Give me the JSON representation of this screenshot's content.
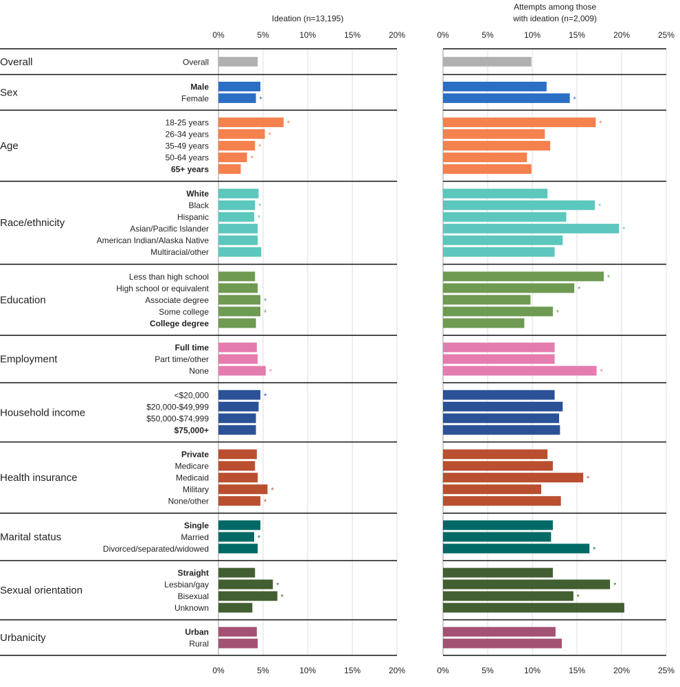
{
  "chart_data": {
    "type": "bar",
    "orientation": "horizontal",
    "significance_marker": "*",
    "panels": [
      {
        "id": "ideation",
        "title": "Ideation (n=13,195)",
        "xlim": [
          0,
          20
        ],
        "ticks": [
          0,
          5,
          10,
          15,
          20
        ],
        "tick_labels": [
          "0%",
          "5%",
          "10%",
          "15%",
          "20%"
        ],
        "grid": true
      },
      {
        "id": "attempts",
        "title_lines": [
          "Attempts among those",
          "with ideation (n=2,009)"
        ],
        "xlim": [
          0,
          25
        ],
        "ticks": [
          0,
          5,
          10,
          15,
          20,
          25
        ],
        "tick_labels": [
          "0%",
          "5%",
          "10%",
          "15%",
          "20%",
          "25%"
        ],
        "grid": true
      }
    ],
    "groups": [
      {
        "name": "Overall",
        "color": "#b0b0b0",
        "items": [
          {
            "label": "Overall",
            "bold": false,
            "ideation": 4.4,
            "ideation_sig": false,
            "attempts": 9.9,
            "attempts_sig": false
          }
        ]
      },
      {
        "name": "Sex",
        "color": "#2a6fc4",
        "items": [
          {
            "label": "Male",
            "bold": true,
            "ideation": 4.7,
            "ideation_sig": false,
            "attempts": 11.6,
            "attempts_sig": false
          },
          {
            "label": "Female",
            "bold": false,
            "ideation": 4.2,
            "ideation_sig": true,
            "attempts": 14.2,
            "attempts_sig": true
          }
        ]
      },
      {
        "name": "Age",
        "color": "#f4814e",
        "items": [
          {
            "label": "18-25 years",
            "bold": false,
            "ideation": 7.3,
            "ideation_sig": true,
            "attempts": 17.1,
            "attempts_sig": true
          },
          {
            "label": "26-34 years",
            "bold": false,
            "ideation": 5.2,
            "ideation_sig": true,
            "attempts": 11.4,
            "attempts_sig": false
          },
          {
            "label": "35-49 years",
            "bold": false,
            "ideation": 4.1,
            "ideation_sig": true,
            "attempts": 12.0,
            "attempts_sig": false
          },
          {
            "label": "50-64 years",
            "bold": false,
            "ideation": 3.2,
            "ideation_sig": true,
            "attempts": 9.4,
            "attempts_sig": false
          },
          {
            "label": "65+ years",
            "bold": true,
            "ideation": 2.5,
            "ideation_sig": false,
            "attempts": 9.9,
            "attempts_sig": false
          }
        ]
      },
      {
        "name": "Race/ethnicity",
        "color": "#5bc7bd",
        "items": [
          {
            "label": "White",
            "bold": true,
            "ideation": 4.5,
            "ideation_sig": false,
            "attempts": 11.7,
            "attempts_sig": false
          },
          {
            "label": "Black",
            "bold": false,
            "ideation": 4.1,
            "ideation_sig": true,
            "attempts": 17.0,
            "attempts_sig": true
          },
          {
            "label": "Hispanic",
            "bold": false,
            "ideation": 4.0,
            "ideation_sig": true,
            "attempts": 13.8,
            "attempts_sig": false
          },
          {
            "label": "Asian/Pacific Islander",
            "bold": false,
            "ideation": 4.4,
            "ideation_sig": false,
            "attempts": 19.7,
            "attempts_sig": true
          },
          {
            "label": "American Indian/Alaska Native",
            "bold": false,
            "ideation": 4.4,
            "ideation_sig": false,
            "attempts": 13.4,
            "attempts_sig": false
          },
          {
            "label": "Multiracial/other",
            "bold": false,
            "ideation": 4.8,
            "ideation_sig": false,
            "attempts": 12.5,
            "attempts_sig": false
          }
        ]
      },
      {
        "name": "Education",
        "color": "#6e9a52",
        "items": [
          {
            "label": "Less than high school",
            "bold": false,
            "ideation": 4.1,
            "ideation_sig": false,
            "attempts": 18.0,
            "attempts_sig": true
          },
          {
            "label": "High school or equivalent",
            "bold": false,
            "ideation": 4.4,
            "ideation_sig": false,
            "attempts": 14.7,
            "attempts_sig": true
          },
          {
            "label": "Associate degree",
            "bold": false,
            "ideation": 4.7,
            "ideation_sig": true,
            "attempts": 9.8,
            "attempts_sig": false
          },
          {
            "label": "Some college",
            "bold": false,
            "ideation": 4.7,
            "ideation_sig": true,
            "attempts": 12.3,
            "attempts_sig": true
          },
          {
            "label": "College degree",
            "bold": true,
            "ideation": 4.2,
            "ideation_sig": false,
            "attempts": 9.1,
            "attempts_sig": false
          }
        ]
      },
      {
        "name": "Employment",
        "color": "#e57cae",
        "items": [
          {
            "label": "Full time",
            "bold": true,
            "ideation": 4.3,
            "ideation_sig": false,
            "attempts": 12.5,
            "attempts_sig": false
          },
          {
            "label": "Part time/other",
            "bold": false,
            "ideation": 4.4,
            "ideation_sig": false,
            "attempts": 12.5,
            "attempts_sig": false
          },
          {
            "label": "None",
            "bold": false,
            "ideation": 5.3,
            "ideation_sig": true,
            "attempts": 17.2,
            "attempts_sig": true
          }
        ]
      },
      {
        "name": "Household income",
        "color": "#2b5297",
        "items": [
          {
            "label": "<$20,000",
            "bold": false,
            "ideation": 4.7,
            "ideation_sig": true,
            "attempts": 12.5,
            "attempts_sig": false
          },
          {
            "label": "$20,000-$49,999",
            "bold": false,
            "ideation": 4.5,
            "ideation_sig": false,
            "attempts": 13.4,
            "attempts_sig": false
          },
          {
            "label": "$50,000-$74,999",
            "bold": false,
            "ideation": 4.2,
            "ideation_sig": false,
            "attempts": 13.0,
            "attempts_sig": false
          },
          {
            "label": "$75,000+",
            "bold": true,
            "ideation": 4.2,
            "ideation_sig": false,
            "attempts": 13.1,
            "attempts_sig": false
          }
        ]
      },
      {
        "name": "Health insurance",
        "color": "#b94f2f",
        "items": [
          {
            "label": "Private",
            "bold": true,
            "ideation": 4.3,
            "ideation_sig": false,
            "attempts": 11.7,
            "attempts_sig": false
          },
          {
            "label": "Medicare",
            "bold": false,
            "ideation": 4.1,
            "ideation_sig": false,
            "attempts": 12.3,
            "attempts_sig": false
          },
          {
            "label": "Medicaid",
            "bold": false,
            "ideation": 4.4,
            "ideation_sig": false,
            "attempts": 15.7,
            "attempts_sig": true
          },
          {
            "label": "Military",
            "bold": false,
            "ideation": 5.5,
            "ideation_sig": true,
            "attempts": 11.0,
            "attempts_sig": false
          },
          {
            "label": "None/other",
            "bold": false,
            "ideation": 4.7,
            "ideation_sig": true,
            "attempts": 13.2,
            "attempts_sig": false
          }
        ]
      },
      {
        "name": "Marital status",
        "color": "#006966",
        "items": [
          {
            "label": "Single",
            "bold": true,
            "ideation": 4.7,
            "ideation_sig": false,
            "attempts": 12.3,
            "attempts_sig": false
          },
          {
            "label": "Married",
            "bold": false,
            "ideation": 4.0,
            "ideation_sig": true,
            "attempts": 12.1,
            "attempts_sig": false
          },
          {
            "label": "Divorced/separated/widowed",
            "bold": false,
            "ideation": 4.4,
            "ideation_sig": false,
            "attempts": 16.4,
            "attempts_sig": true
          }
        ]
      },
      {
        "name": "Sexual orientation",
        "color": "#425f31",
        "items": [
          {
            "label": "Straight",
            "bold": true,
            "ideation": 4.1,
            "ideation_sig": false,
            "attempts": 12.3,
            "attempts_sig": false
          },
          {
            "label": "Lesbian/gay",
            "bold": false,
            "ideation": 6.1,
            "ideation_sig": true,
            "attempts": 18.7,
            "attempts_sig": true
          },
          {
            "label": "Bisexual",
            "bold": false,
            "ideation": 6.6,
            "ideation_sig": true,
            "attempts": 14.6,
            "attempts_sig": true
          },
          {
            "label": "Unknown",
            "bold": false,
            "ideation": 3.8,
            "ideation_sig": false,
            "attempts": 20.3,
            "attempts_sig": false
          }
        ]
      },
      {
        "name": "Urbanicity",
        "color": "#a35273",
        "items": [
          {
            "label": "Urban",
            "bold": true,
            "ideation": 4.3,
            "ideation_sig": false,
            "attempts": 12.6,
            "attempts_sig": false
          },
          {
            "label": "Rural",
            "bold": false,
            "ideation": 4.4,
            "ideation_sig": false,
            "attempts": 13.3,
            "attempts_sig": false
          }
        ]
      }
    ]
  }
}
